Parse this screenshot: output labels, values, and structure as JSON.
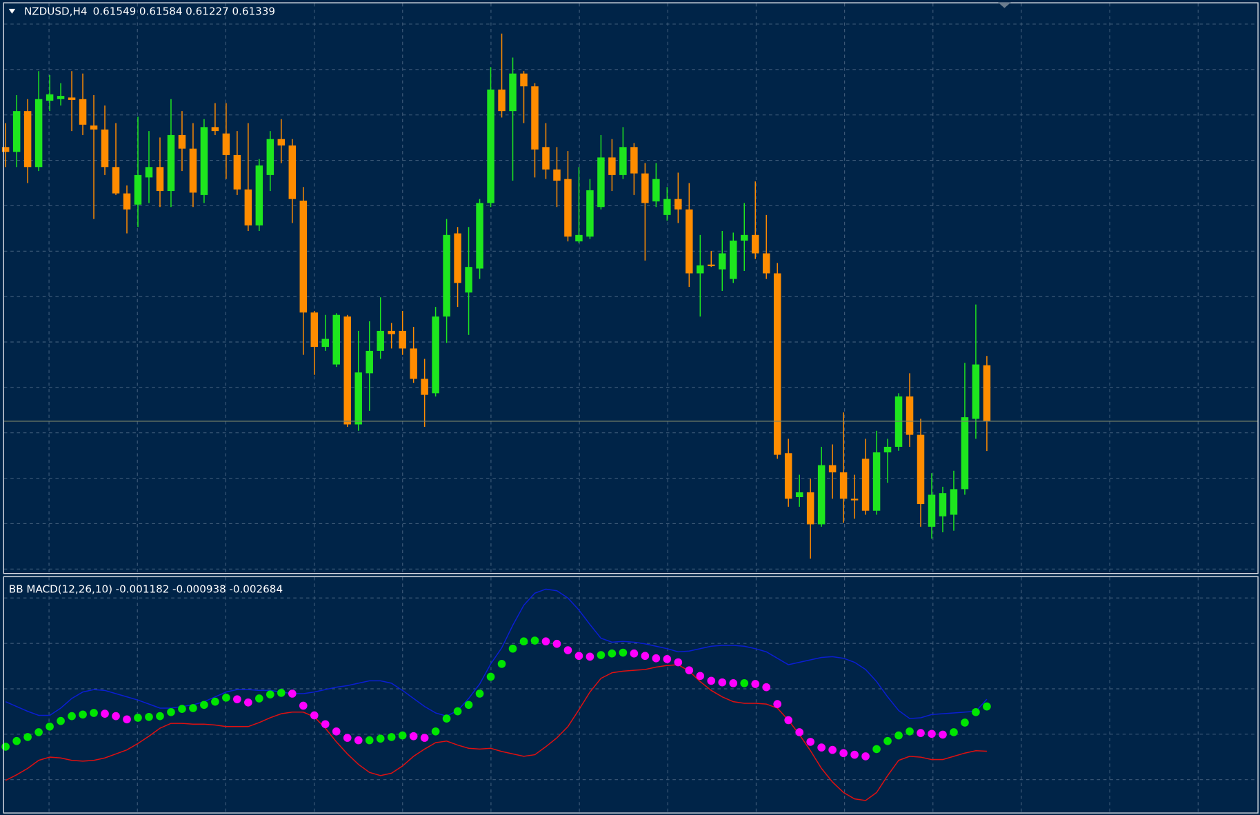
{
  "chart_data": [
    {
      "type": "candlestick",
      "title": "NZDUSD,H4",
      "ylim": [
        0.60769,
        0.62908
      ],
      "grid": true,
      "up_color": "#1ee61e",
      "down_color": "#ff8c00",
      "candles": [
        [
          0.62368,
          0.62458,
          0.62293,
          0.6235
        ],
        [
          0.6235,
          0.62563,
          0.62293,
          0.62503
        ],
        [
          0.62503,
          0.62548,
          0.62233,
          0.62293
        ],
        [
          0.62293,
          0.62653,
          0.62278,
          0.62548
        ],
        [
          0.62542,
          0.62638,
          0.62503,
          0.62566
        ],
        [
          0.62548,
          0.62608,
          0.62524,
          0.6256
        ],
        [
          0.62554,
          0.62653,
          0.62428,
          0.62545
        ],
        [
          0.62548,
          0.62644,
          0.62413,
          0.62452
        ],
        [
          0.62449,
          0.62563,
          0.62098,
          0.62434
        ],
        [
          0.62434,
          0.62524,
          0.62263,
          0.62293
        ],
        [
          0.62293,
          0.62458,
          0.62188,
          0.62194
        ],
        [
          0.62194,
          0.62224,
          0.62044,
          0.62134
        ],
        [
          0.62152,
          0.62482,
          0.62068,
          0.62263
        ],
        [
          0.62254,
          0.62428,
          0.62158,
          0.62293
        ],
        [
          0.62293,
          0.62404,
          0.62143,
          0.62203
        ],
        [
          0.62203,
          0.62548,
          0.62143,
          0.62413
        ],
        [
          0.62413,
          0.62503,
          0.62278,
          0.62362
        ],
        [
          0.62362,
          0.62458,
          0.62143,
          0.62197
        ],
        [
          0.62188,
          0.62473,
          0.62158,
          0.62443
        ],
        [
          0.62443,
          0.62533,
          0.62413,
          0.62428
        ],
        [
          0.62419,
          0.62533,
          0.62248,
          0.62338
        ],
        [
          0.62338,
          0.62428,
          0.62188,
          0.62209
        ],
        [
          0.62209,
          0.62458,
          0.62053,
          0.62074
        ],
        [
          0.62074,
          0.62323,
          0.62053,
          0.62299
        ],
        [
          0.62263,
          0.62428,
          0.62203,
          0.62398
        ],
        [
          0.62398,
          0.62473,
          0.62308,
          0.62374
        ],
        [
          0.62374,
          0.62398,
          0.62083,
          0.62173
        ],
        [
          0.62167,
          0.62218,
          0.61588,
          0.61747
        ],
        [
          0.61747,
          0.61753,
          0.61513,
          0.61618
        ],
        [
          0.61618,
          0.61738,
          0.61603,
          0.61648
        ],
        [
          0.61552,
          0.61744,
          0.61543,
          0.61738
        ],
        [
          0.61732,
          0.61738,
          0.61318,
          0.61327
        ],
        [
          0.61327,
          0.61678,
          0.61303,
          0.61522
        ],
        [
          0.61519,
          0.61714,
          0.61378,
          0.61603
        ],
        [
          0.61603,
          0.61804,
          0.61573,
          0.61678
        ],
        [
          0.61678,
          0.61708,
          0.61612,
          0.61666
        ],
        [
          0.61678,
          0.61753,
          0.61588,
          0.61612
        ],
        [
          0.61612,
          0.61693,
          0.61483,
          0.61498
        ],
        [
          0.61498,
          0.61573,
          0.61318,
          0.61438
        ],
        [
          0.61444,
          0.61768,
          0.61432,
          0.61732
        ],
        [
          0.61732,
          0.62098,
          0.61633,
          0.62038
        ],
        [
          0.62044,
          0.62068,
          0.61768,
          0.61858
        ],
        [
          0.61822,
          0.62068,
          0.61663,
          0.61918
        ],
        [
          0.61912,
          0.62173,
          0.61873,
          0.62158
        ],
        [
          0.62158,
          0.62668,
          0.62143,
          0.62584
        ],
        [
          0.62584,
          0.62794,
          0.62479,
          0.62503
        ],
        [
          0.62503,
          0.62704,
          0.62242,
          0.62644
        ],
        [
          0.62644,
          0.62653,
          0.62458,
          0.62596
        ],
        [
          0.62596,
          0.62608,
          0.62254,
          0.62359
        ],
        [
          0.62368,
          0.62458,
          0.62248,
          0.62284
        ],
        [
          0.62284,
          0.62368,
          0.62143,
          0.62242
        ],
        [
          0.62248,
          0.62353,
          0.62014,
          0.62032
        ],
        [
          0.62014,
          0.62293,
          0.62008,
          0.62038
        ],
        [
          0.62032,
          0.62248,
          0.62023,
          0.62206
        ],
        [
          0.62143,
          0.62413,
          0.62134,
          0.62329
        ],
        [
          0.62329,
          0.62398,
          0.62203,
          0.62263
        ],
        [
          0.62263,
          0.62443,
          0.62248,
          0.62368
        ],
        [
          0.62368,
          0.62383,
          0.62188,
          0.62269
        ],
        [
          0.62269,
          0.62308,
          0.61942,
          0.62158
        ],
        [
          0.62164,
          0.62308,
          0.62143,
          0.62248
        ],
        [
          0.62113,
          0.62218,
          0.62092,
          0.62173
        ],
        [
          0.62173,
          0.62272,
          0.62083,
          0.62134
        ],
        [
          0.62134,
          0.62233,
          0.61843,
          0.61894
        ],
        [
          0.61894,
          0.62038,
          0.61732,
          0.61924
        ],
        [
          0.61927,
          0.61978,
          0.61918,
          0.61921
        ],
        [
          0.61909,
          0.62053,
          0.61828,
          0.61969
        ],
        [
          0.61873,
          0.62047,
          0.61858,
          0.62017
        ],
        [
          0.62017,
          0.62158,
          0.61903,
          0.62038
        ],
        [
          0.62038,
          0.62239,
          0.61948,
          0.61969
        ],
        [
          0.61969,
          0.62113,
          0.61873,
          0.61894
        ],
        [
          0.61894,
          0.61933,
          0.61198,
          0.61213
        ],
        [
          0.61219,
          0.61273,
          0.61018,
          0.61048
        ],
        [
          0.61054,
          0.61138,
          0.61018,
          0.61072
        ],
        [
          0.61072,
          0.61123,
          0.60823,
          0.60952
        ],
        [
          0.60952,
          0.61243,
          0.60943,
          0.61174
        ],
        [
          0.61174,
          0.61252,
          0.61048,
          0.61147
        ],
        [
          0.61147,
          0.61372,
          0.60958,
          0.61048
        ],
        [
          0.61048,
          0.61138,
          0.60973,
          0.61042
        ],
        [
          0.61198,
          0.61273,
          0.60988,
          0.61003
        ],
        [
          0.61003,
          0.61303,
          0.60988,
          0.61222
        ],
        [
          0.61222,
          0.61273,
          0.61108,
          0.61243
        ],
        [
          0.61243,
          0.61444,
          0.61228,
          0.61432
        ],
        [
          0.61432,
          0.61519,
          0.61243,
          0.61288
        ],
        [
          0.61288,
          0.61348,
          0.60943,
          0.61028
        ],
        [
          0.60943,
          0.61144,
          0.60898,
          0.61063
        ],
        [
          0.60982,
          0.61093,
          0.60922,
          0.61069
        ],
        [
          0.60988,
          0.61153,
          0.60928,
          0.61084
        ],
        [
          0.61084,
          0.61558,
          0.61063,
          0.61354
        ],
        [
          0.61348,
          0.61777,
          0.61273,
          0.61552
        ],
        [
          0.61549,
          0.61584,
          0.61227,
          0.61339
        ]
      ]
    },
    {
      "type": "line",
      "title": "BB MACD(12,26,10)",
      "ylim": [
        -0.004746,
        0.003165
      ],
      "grid": true,
      "series": [
        {
          "style": "dots",
          "up_color": "#00e600",
          "down_color": "#ff00ff",
          "values": [
            -0.002532,
            -0.002343,
            -0.002208,
            -0.002046,
            -0.001857,
            -0.001668,
            -0.001506,
            -0.001452,
            -0.001398,
            -0.001425,
            -0.001506,
            -0.001614,
            -0.00156,
            -0.001533,
            -0.001506,
            -0.001371,
            -0.001263,
            -0.001236,
            -0.001128,
            -0.00102,
            -0.000885,
            -0.000939,
            -0.001047,
            -0.000912,
            -0.000777,
            -0.000723,
            -0.00075,
            -0.001155,
            -0.001479,
            -0.001776,
            -0.002019,
            -0.002235,
            -0.002316,
            -0.002316,
            -0.002262,
            -0.002208,
            -0.002154,
            -0.002181,
            -0.002235,
            -0.002019,
            -0.001587,
            -0.001344,
            -0.001128,
            -0.00075,
            -0.000183,
            0.000249,
            0.000762,
            0.001005,
            0.001032,
            0.001005,
            0.000924,
            0.000708,
            0.000519,
            0.000492,
            0.000546,
            0.0006,
            0.000627,
            0.0006,
            0.000519,
            0.000438,
            0.000411,
            0.000303,
            3.3e-05,
            -0.000156,
            -0.000318,
            -0.000372,
            -0.000399,
            -0.000399,
            -0.000426,
            -0.000534,
            -0.001101,
            -0.001641,
            -0.002046,
            -0.00237,
            -0.002559,
            -0.00264,
            -0.002748,
            -0.002802,
            -0.002856,
            -0.002613,
            -0.002343,
            -0.002154,
            -0.002019,
            -0.002073,
            -0.0021,
            -0.002127,
            -0.002046,
            -0.001722,
            -0.001371,
            -0.001182
          ]
        },
        {
          "style": "line",
          "color": "#0a1ed2",
          "values": [
            -0.00102,
            -0.001182,
            -0.001344,
            -0.001479,
            -0.001479,
            -0.001236,
            -0.000912,
            -0.000696,
            -0.000615,
            -0.000642,
            -0.00075,
            -0.000858,
            -0.000966,
            -0.001101,
            -0.001236,
            -0.001236,
            -0.001182,
            -0.001128,
            -0.00102,
            -0.000858,
            -0.000696,
            -0.000615,
            -0.000615,
            -0.000642,
            -0.000642,
            -0.000696,
            -0.00075,
            -0.00075,
            -0.000696,
            -0.000615,
            -0.000534,
            -0.00048,
            -0.000399,
            -0.000318,
            -0.000318,
            -0.000399,
            -0.000642,
            -0.000912,
            -0.001182,
            -0.001398,
            -0.001506,
            -0.001317,
            -0.000912,
            -0.000426,
            0.000249,
            0.000789,
            0.001545,
            0.00222,
            0.002625,
            0.00276,
            0.002706,
            0.002463,
            0.002058,
            0.001572,
            0.001113,
            0.000978,
            0.001005,
            0.000978,
            0.000924,
            0.000843,
            0.000762,
            0.000654,
            0.000681,
            0.000762,
            0.000843,
            0.00087,
            0.00087,
            0.000843,
            0.000762,
            0.000654,
            0.000438,
            0.000222,
            0.000303,
            0.000384,
            0.000465,
            0.000492,
            0.000438,
            0.000303,
            6e-05,
            -0.000345,
            -0.000858,
            -0.001317,
            -0.001587,
            -0.00156,
            -0.001452,
            -0.001425,
            -0.001398,
            -0.001371,
            -0.001344,
            -0.000938
          ]
        },
        {
          "style": "line",
          "color": "#e01010",
          "values": [
            -0.003666,
            -0.003477,
            -0.003261,
            -0.002991,
            -0.002883,
            -0.00291,
            -0.002991,
            -0.003018,
            -0.002991,
            -0.00291,
            -0.002775,
            -0.00264,
            -0.002424,
            -0.002181,
            -0.001911,
            -0.001749,
            -0.001749,
            -0.001776,
            -0.001776,
            -0.001803,
            -0.001857,
            -0.001857,
            -0.001857,
            -0.001722,
            -0.00156,
            -0.001425,
            -0.001371,
            -0.001371,
            -0.001533,
            -0.001911,
            -0.00237,
            -0.002775,
            -0.003126,
            -0.003396,
            -0.003504,
            -0.003423,
            -0.00318,
            -0.002856,
            -0.002613,
            -0.002397,
            -0.002343,
            -0.002478,
            -0.002586,
            -0.002613,
            -0.002586,
            -0.002694,
            -0.002775,
            -0.002856,
            -0.002802,
            -0.002532,
            -0.002235,
            -0.001857,
            -0.00129,
            -0.000696,
            -0.000237,
            -4.8e-05,
            6e-06,
            3.3e-05,
            6e-05,
            0.000141,
            0.000195,
            0.000222,
            6e-06,
            -0.000345,
            -0.000642,
            -0.000858,
            -0.00102,
            -0.001074,
            -0.001074,
            -0.001101,
            -0.001236,
            -0.001641,
            -0.002127,
            -0.002667,
            -0.003261,
            -0.00372,
            -0.004071,
            -0.004287,
            -0.004341,
            -0.004071,
            -0.003504,
            -0.002991,
            -0.002856,
            -0.002883,
            -0.002964,
            -0.002964,
            -0.002856,
            -0.002748,
            -0.002667,
            -0.002684
          ]
        }
      ]
    }
  ]
}
